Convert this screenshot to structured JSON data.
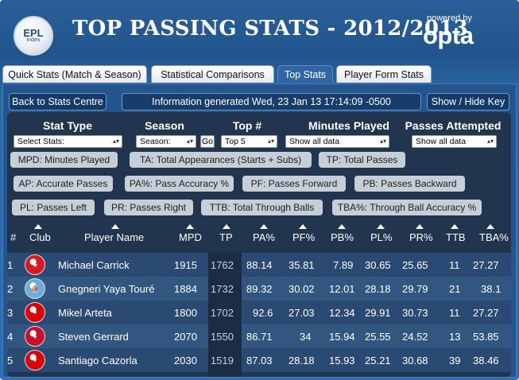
{
  "header": {
    "logo": {
      "line1": "EPL",
      "line2": "index"
    },
    "title": "TOP PASSING STATS - 2012/2013",
    "powered_by": "powered by",
    "brand": "opta"
  },
  "tabs": [
    {
      "label": "Quick Stats (Match & Season)",
      "active": false
    },
    {
      "label": "Statistical Comparisons",
      "active": false
    },
    {
      "label": "Top Stats",
      "active": true
    },
    {
      "label": "Player Form Stats",
      "active": false
    }
  ],
  "toolbar": {
    "back_label": "Back to Stats Centre",
    "info_label": "Information generated Wed, 23 Jan 13 17:14:09 -0500",
    "toggle_label": "Show / Hide Key"
  },
  "filters": {
    "stat_type": {
      "label": "Stat Type",
      "value": "Select Stats:"
    },
    "season": {
      "label": "Season",
      "value": "Season:"
    },
    "go_label": "Go",
    "top": {
      "label": "Top #",
      "value": "Top 5"
    },
    "minutes": {
      "label": "Minutes Played",
      "value": "Show all data"
    },
    "passes": {
      "label": "Passes Attempted",
      "value": "Show all data"
    }
  },
  "key": {
    "mpd": "MPD: Minutes Played",
    "ta": "TA: Total Appearances (Starts + Subs)",
    "tp": "TP: Total Passes",
    "ap": "AP: Accurate Passes",
    "pa": "PA%: Pass Accuracy %",
    "pf": "PF: Passes Forward",
    "pb": "PB: Passes Backward",
    "pl": "PL: Passes Left",
    "pr": "PR: Passes Right",
    "ttb": "TTB: Total Through Balls",
    "tba": "TBA%: Through Ball Accuracy %"
  },
  "table": {
    "headers": {
      "rank": "#",
      "club": "Club",
      "player": "Player Name",
      "mpd": "MPD",
      "tp": "TP",
      "pa": "PA%",
      "pf": "PF%",
      "pb": "PB%",
      "pl": "PL%",
      "pr": "PR%",
      "ttb": "TTB",
      "tba": "TBA%"
    },
    "rows": [
      {
        "rank": "1",
        "club_icon": "man-utd-crest-icon",
        "club_color": "#d71920",
        "player": "Michael Carrick",
        "mpd": "1915",
        "tp": "1762",
        "pa": "88.14",
        "pf": "35.81",
        "pb": "7.89",
        "pl": "30.65",
        "pr": "25.65",
        "ttb": "11",
        "tba": "27.27"
      },
      {
        "rank": "2",
        "club_icon": "man-city-crest-icon",
        "club_color": "#6cabdd",
        "player": "Gnegneri Yaya Touré",
        "mpd": "1884",
        "tp": "1732",
        "pa": "89.32",
        "pf": "30.02",
        "pb": "12.01",
        "pl": "28.18",
        "pr": "29.79",
        "ttb": "21",
        "tba": "38.1"
      },
      {
        "rank": "3",
        "club_icon": "arsenal-crest-icon",
        "club_color": "#db0007",
        "player": "Mikel Arteta",
        "mpd": "1800",
        "tp": "1702",
        "pa": "92.6",
        "pf": "27.03",
        "pb": "12.34",
        "pl": "29.91",
        "pr": "30.73",
        "ttb": "11",
        "tba": "27.27"
      },
      {
        "rank": "4",
        "club_icon": "liverpool-crest-icon",
        "club_color": "#c8102e",
        "player": "Steven Gerrard",
        "mpd": "2070",
        "tp": "1550",
        "pa": "86.71",
        "pf": "34",
        "pb": "15.94",
        "pl": "25.55",
        "pr": "24.52",
        "ttb": "13",
        "tba": "53.85"
      },
      {
        "rank": "5",
        "club_icon": "arsenal-crest-icon",
        "club_color": "#db0007",
        "player": "Santiago Cazorla",
        "mpd": "2030",
        "tp": "1519",
        "pa": "87.03",
        "pf": "28.18",
        "pb": "15.93",
        "pl": "25.21",
        "pr": "30.68",
        "ttb": "39",
        "tba": "38.46"
      }
    ]
  }
}
